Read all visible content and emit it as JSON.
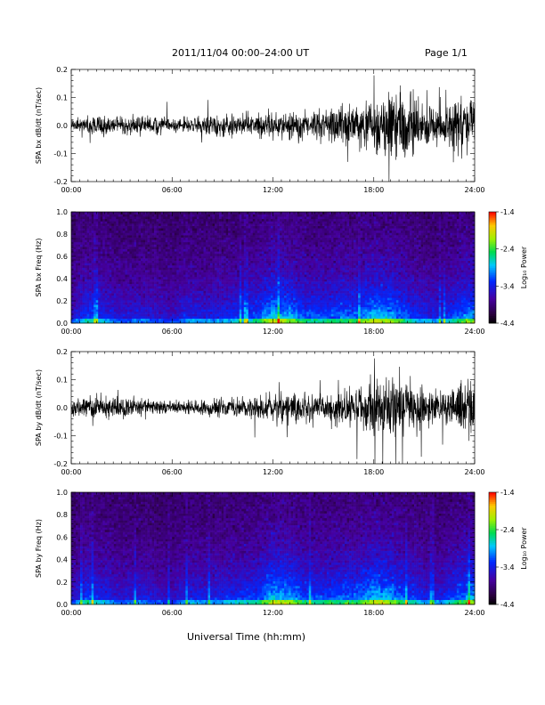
{
  "header": {
    "title": "2011/11/04  00:00–24:00 UT",
    "page": "Page 1/1"
  },
  "x_axis_title": "Universal Time (hh:mm)",
  "chart_data": [
    {
      "type": "line",
      "panel": "bx-dbdt",
      "ylabel": "SPA bx dB/dt (nT/sec)",
      "xlim": [
        0,
        24
      ],
      "ylim": [
        -0.2,
        0.2
      ],
      "xticks": [
        0,
        6,
        12,
        18,
        24
      ],
      "xtick_labels": [
        "00:00",
        "06:00",
        "12:00",
        "18:00",
        "24:00"
      ],
      "yticks": [
        -0.2,
        -0.1,
        0.0,
        0.1,
        0.2
      ],
      "ytick_labels": [
        "-0.2",
        "-0.1",
        "0.0",
        "0.1",
        "0.2"
      ],
      "envelope": {
        "hours": [
          0,
          1,
          2,
          3,
          4,
          5,
          6,
          7,
          8,
          9,
          10,
          11,
          12,
          13,
          14,
          15,
          16,
          17,
          18,
          19,
          20,
          21,
          22,
          23,
          24
        ],
        "amplitude": [
          0.025,
          0.04,
          0.045,
          0.035,
          0.04,
          0.035,
          0.03,
          0.035,
          0.04,
          0.045,
          0.05,
          0.05,
          0.06,
          0.06,
          0.055,
          0.065,
          0.08,
          0.09,
          0.11,
          0.16,
          0.14,
          0.1,
          0.09,
          0.12,
          0.15
        ]
      }
    },
    {
      "type": "heatmap",
      "panel": "bx-spectrogram",
      "ylabel": "SPA bx Freq (Hz)",
      "xlim": [
        0,
        24
      ],
      "ylim": [
        0.0,
        1.0
      ],
      "xticks": [
        0,
        6,
        12,
        18,
        24
      ],
      "xtick_labels": [
        "00:00",
        "06:00",
        "12:00",
        "18:00",
        "24:00"
      ],
      "yticks": [
        0.0,
        0.2,
        0.4,
        0.6,
        0.8,
        1.0
      ],
      "ytick_labels": [
        "0.0",
        "0.2",
        "0.4",
        "0.6",
        "0.8",
        "1.0"
      ],
      "colorbar": {
        "label": "Log₁₀ Power",
        "range": [
          -4.4,
          -1.4
        ],
        "ticks": [
          -1.4,
          -2.4,
          -3.4,
          -4.4
        ],
        "tick_labels": [
          "-1.4",
          "-2.4",
          "-3.4",
          "-4.4"
        ]
      }
    },
    {
      "type": "line",
      "panel": "by-dbdt",
      "ylabel": "SPA by dB/dt (nT/sec)",
      "xlim": [
        0,
        24
      ],
      "ylim": [
        -0.2,
        0.2
      ],
      "xticks": [
        0,
        6,
        12,
        18,
        24
      ],
      "xtick_labels": [
        "00:00",
        "06:00",
        "12:00",
        "18:00",
        "24:00"
      ],
      "yticks": [
        -0.2,
        -0.1,
        0.0,
        0.1,
        0.2
      ],
      "ytick_labels": [
        "-0.2",
        "-0.1",
        "0.0",
        "0.1",
        "0.2"
      ],
      "envelope": {
        "hours": [
          0,
          1,
          2,
          3,
          4,
          5,
          6,
          7,
          8,
          9,
          10,
          11,
          12,
          13,
          14,
          15,
          16,
          17,
          18,
          19,
          20,
          21,
          22,
          23,
          24
        ],
        "amplitude": [
          0.03,
          0.05,
          0.05,
          0.04,
          0.04,
          0.03,
          0.025,
          0.03,
          0.035,
          0.04,
          0.045,
          0.05,
          0.06,
          0.065,
          0.06,
          0.06,
          0.08,
          0.1,
          0.13,
          0.16,
          0.12,
          0.09,
          0.08,
          0.11,
          0.15
        ]
      }
    },
    {
      "type": "heatmap",
      "panel": "by-spectrogram",
      "ylabel": "SPA by Freq (Hz)",
      "xlim": [
        0,
        24
      ],
      "ylim": [
        0.0,
        1.0
      ],
      "xticks": [
        0,
        6,
        12,
        18,
        24
      ],
      "xtick_labels": [
        "00:00",
        "06:00",
        "12:00",
        "18:00",
        "24:00"
      ],
      "yticks": [
        0.0,
        0.2,
        0.4,
        0.6,
        0.8,
        1.0
      ],
      "ytick_labels": [
        "0.0",
        "0.2",
        "0.4",
        "0.6",
        "0.8",
        "1.0"
      ],
      "colorbar": {
        "label": "Log₁₀ Power",
        "range": [
          -4.4,
          -1.4
        ],
        "ticks": [
          -1.4,
          -2.4,
          -3.4,
          -4.4
        ],
        "tick_labels": [
          "-1.4",
          "-2.4",
          "-3.4",
          "-4.4"
        ]
      }
    }
  ]
}
